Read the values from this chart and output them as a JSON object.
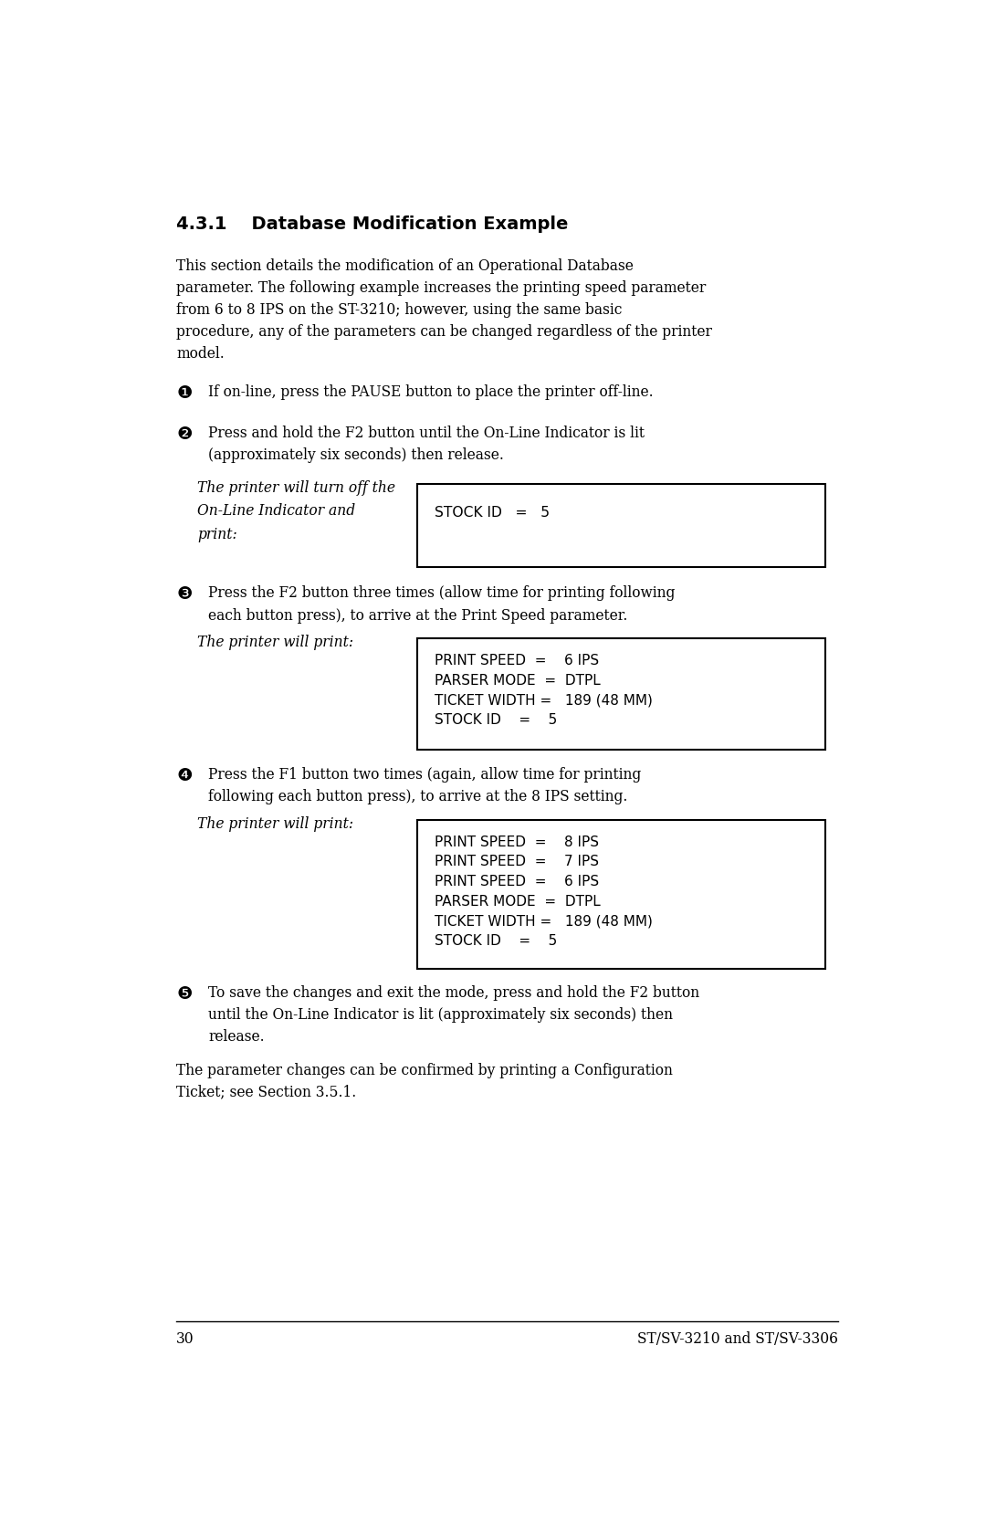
{
  "title": "4.3.1    Database Modification Example",
  "bg_color": "#ffffff",
  "text_color": "#000000",
  "page_number": "30",
  "footer_right": "ST/SV-3210 and ST/SV-3306",
  "intro_wrapped": "This section details the modification of an Operational Database\nparameter. The following example increases the printing speed parameter\nfrom 6 to 8 IPS on the ST-3210; however, using the same basic\nprocedure, any of the parameters can be changed regardless of the printer\nmodel.",
  "steps": [
    {
      "number": "❶",
      "text": "If on-line, press the PAUSE button to place the printer off-line."
    },
    {
      "number": "❷",
      "text": "Press and hold the F2 button until the On-Line Indicator is lit\n(approximately six seconds) then release.",
      "side_label": "The printer will turn off the\nOn-Line Indicator and\nprint:",
      "box_content": "STOCK ID   =   5"
    },
    {
      "number": "❸",
      "text": "Press the F2 button three times (allow time for printing following\neach button press), to arrive at the Print Speed parameter.",
      "side_label": "The printer will print:",
      "box_content": "PRINT SPEED  =    6 IPS\nPARSER MODE  =  DTPL\nTICKET WIDTH =   189 (48 MM)\nSTOCK ID    =    5"
    },
    {
      "number": "❹",
      "text": "Press the F1 button two times (again, allow time for printing\nfollowing each button press), to arrive at the 8 IPS setting.",
      "side_label": "The printer will print:",
      "box_content": "PRINT SPEED  =    8 IPS\nPRINT SPEED  =    7 IPS\nPRINT SPEED  =    6 IPS\nPARSER MODE  =  DTPL\nTICKET WIDTH =   189 (48 MM)\nSTOCK ID    =    5"
    },
    {
      "number": "❺",
      "text": "To save the changes and exit the mode, press and hold the F2 button\nuntil the On-Line Indicator is lit (approximately six seconds) then\nrelease."
    }
  ],
  "closing_text": "The parameter changes can be confirmed by printing a Configuration\nTicket; see Section 3.5.1."
}
